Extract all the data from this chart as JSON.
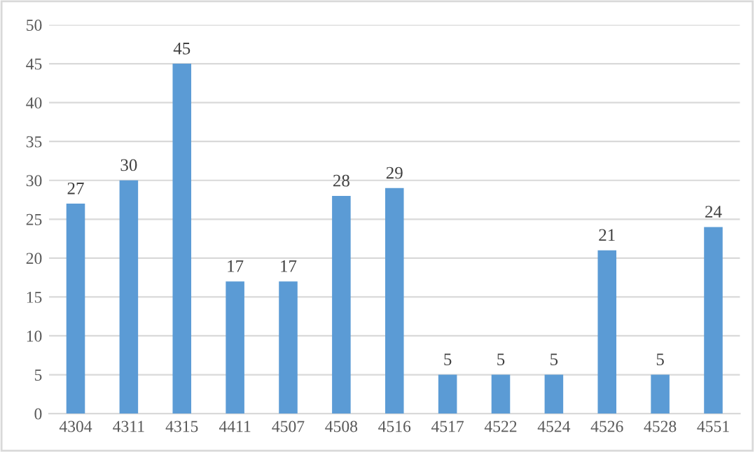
{
  "chart_data": {
    "type": "bar",
    "categories": [
      "4304",
      "4311",
      "4315",
      "4411",
      "4507",
      "4508",
      "4516",
      "4517",
      "4522",
      "4524",
      "4526",
      "4528",
      "4551"
    ],
    "values": [
      27,
      30,
      45,
      17,
      17,
      28,
      29,
      5,
      5,
      5,
      21,
      5,
      24
    ],
    "color": "#5b9bd5",
    "ylim": [
      0,
      50
    ],
    "yticks": [
      0,
      5,
      10,
      15,
      20,
      25,
      30,
      35,
      40,
      45,
      50
    ],
    "grid": "y",
    "data_labels": true,
    "legend": false
  }
}
